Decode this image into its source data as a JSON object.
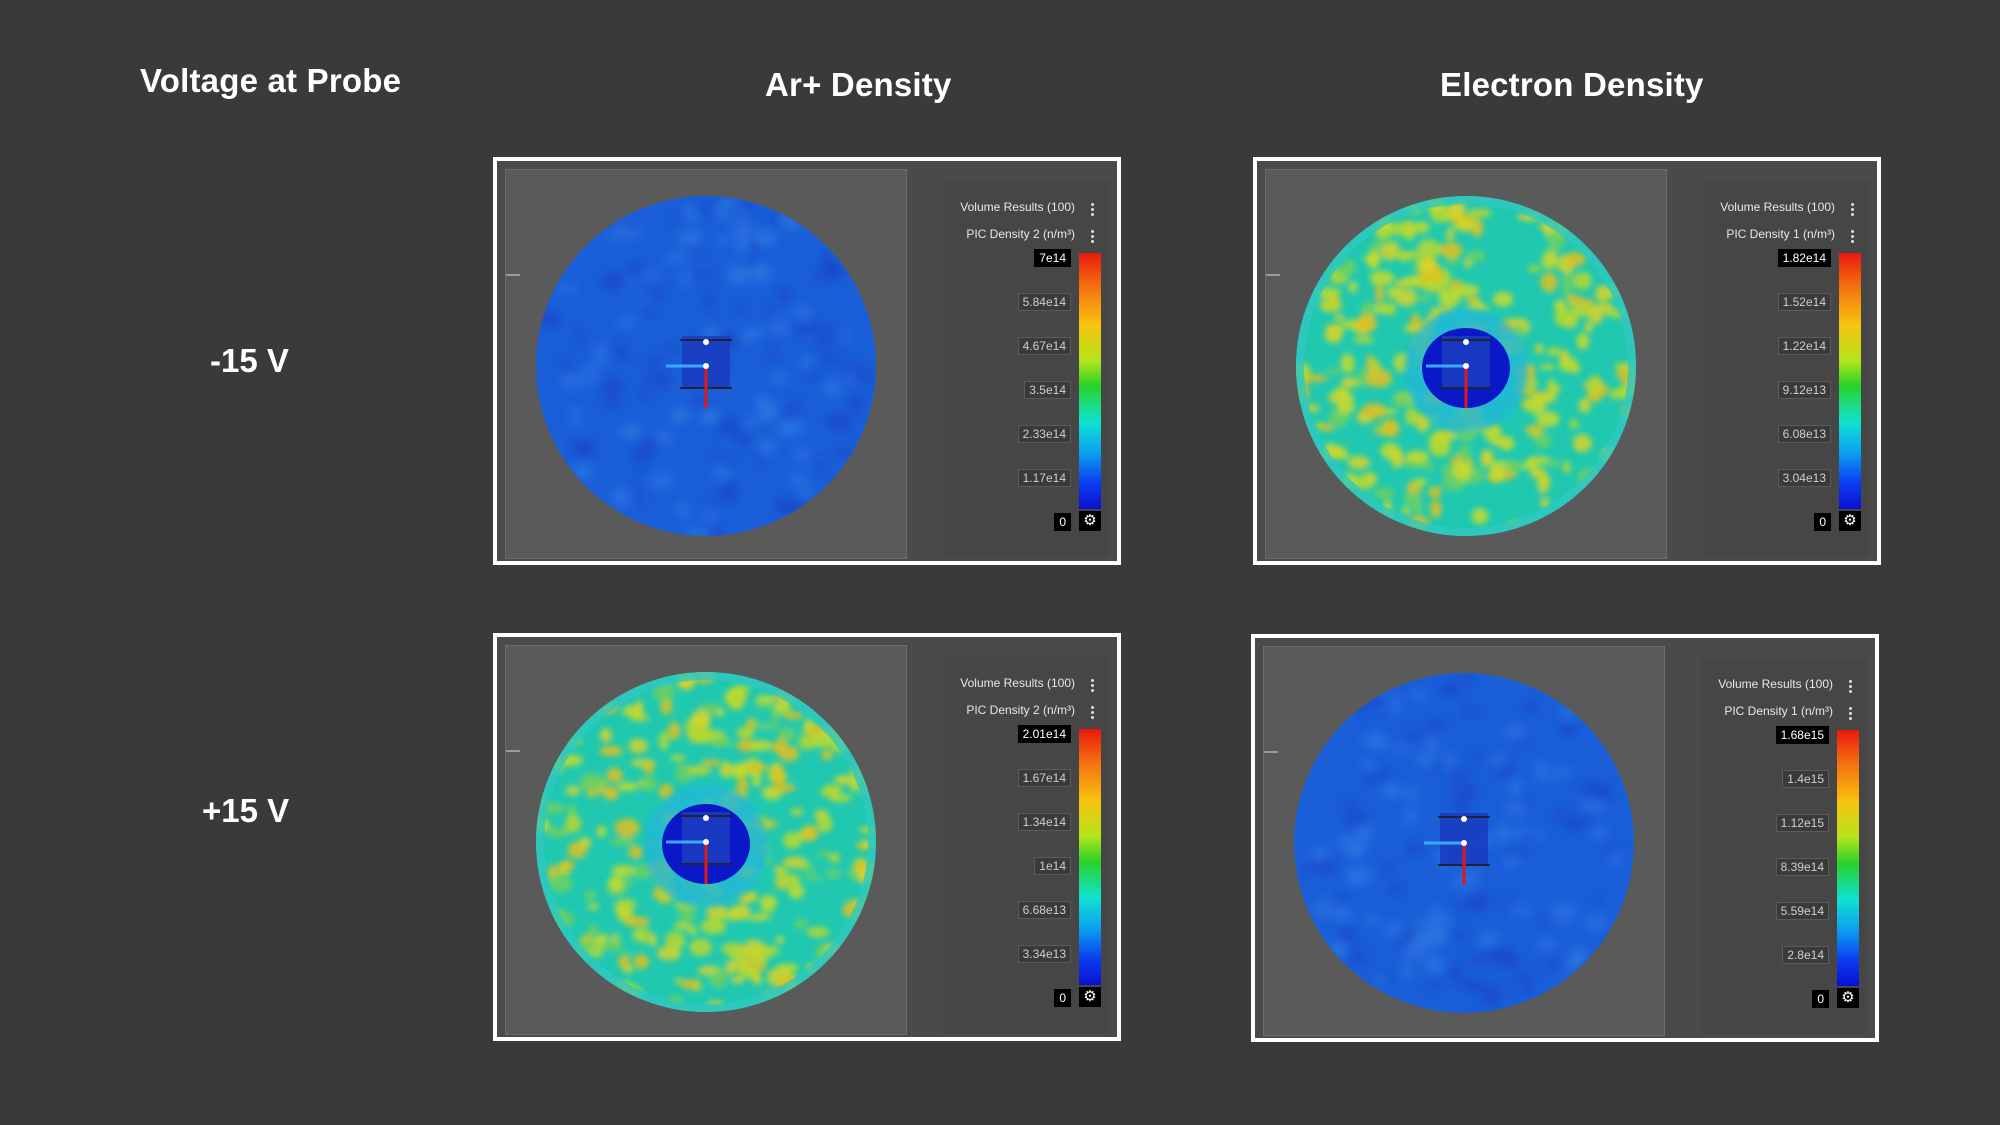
{
  "headers": {
    "row_title": "Voltage at Probe",
    "col1": "Ar+ Density",
    "col2": "Electron Density"
  },
  "rows": [
    {
      "label": "-15 V"
    },
    {
      "label": "+15 V"
    }
  ],
  "panels": [
    {
      "title": "Volume Results (100)",
      "subtitle": "PIC Density 2 (n/m³)",
      "ticks": [
        "7e14",
        "5.84e14",
        "4.67e14",
        "3.5e14",
        "2.33e14",
        "1.17e14",
        "0"
      ],
      "pattern": "uniform-blue"
    },
    {
      "title": "Volume Results (100)",
      "subtitle": "PIC Density 1 (n/m³)",
      "ticks": [
        "1.82e14",
        "1.52e14",
        "1.22e14",
        "9.12e13",
        "6.08e13",
        "3.04e13",
        "0"
      ],
      "pattern": "mottled-void"
    },
    {
      "title": "Volume Results (100)",
      "subtitle": "PIC Density 2 (n/m³)",
      "ticks": [
        "2.01e14",
        "1.67e14",
        "1.34e14",
        "1e14",
        "6.68e13",
        "3.34e13",
        "0"
      ],
      "pattern": "mottled-void"
    },
    {
      "title": "Volume Results (100)",
      "subtitle": "PIC Density 1 (n/m³)",
      "ticks": [
        "1.68e15",
        "1.4e15",
        "1.12e15",
        "8.39e14",
        "5.59e14",
        "2.8e14",
        "0"
      ],
      "pattern": "uniform-blue"
    }
  ],
  "icons": {
    "legend_settings": "gear-icon",
    "menu": "kebab-menu-icon"
  }
}
